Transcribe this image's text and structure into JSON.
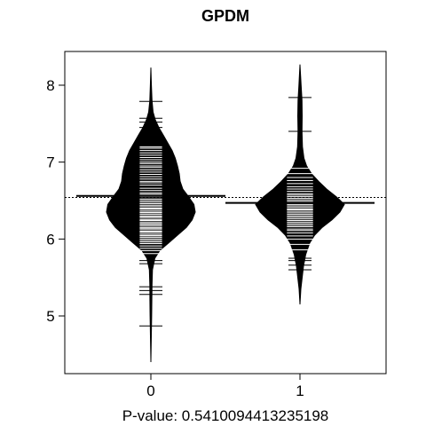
{
  "chart_data": {
    "type": "beanplot",
    "title": "GPDM",
    "xlabel": "P-value: 0.5410094413235198",
    "ylabel": "",
    "categories": [
      "0",
      "1"
    ],
    "ylim": [
      4.3,
      8.4
    ],
    "yticks": [
      5,
      6,
      7,
      8
    ],
    "ytick_labels": [
      "5",
      "6",
      "7",
      "8"
    ],
    "overall_mean": 6.54,
    "grid": false,
    "legend": "none",
    "colors": {
      "bean_fill": "#000000",
      "beanline": "#ffffff",
      "axis": "#000000"
    },
    "series": [
      {
        "category": "0",
        "mean": 6.56,
        "y_range": [
          4.4,
          8.23
        ],
        "density_profile": [
          [
            4.4,
            0.0
          ],
          [
            4.6,
            0.006
          ],
          [
            4.8,
            0.012
          ],
          [
            5.0,
            0.018
          ],
          [
            5.2,
            0.022
          ],
          [
            5.4,
            0.025
          ],
          [
            5.6,
            0.035
          ],
          [
            5.75,
            0.09
          ],
          [
            5.85,
            0.2
          ],
          [
            5.95,
            0.4
          ],
          [
            6.05,
            0.6
          ],
          [
            6.15,
            0.8
          ],
          [
            6.25,
            0.93
          ],
          [
            6.35,
            1.0
          ],
          [
            6.45,
            0.97
          ],
          [
            6.55,
            0.85
          ],
          [
            6.65,
            0.72
          ],
          [
            6.75,
            0.66
          ],
          [
            6.85,
            0.64
          ],
          [
            6.95,
            0.6
          ],
          [
            7.05,
            0.55
          ],
          [
            7.15,
            0.48
          ],
          [
            7.25,
            0.38
          ],
          [
            7.35,
            0.28
          ],
          [
            7.45,
            0.18
          ],
          [
            7.55,
            0.1
          ],
          [
            7.65,
            0.05
          ],
          [
            7.8,
            0.025
          ],
          [
            8.0,
            0.012
          ],
          [
            8.23,
            0.0
          ]
        ],
        "points": [
          4.87,
          5.28,
          5.33,
          5.38,
          5.68,
          5.72,
          5.81,
          5.85,
          5.88,
          5.91,
          5.94,
          5.96,
          5.98,
          6.0,
          6.02,
          6.04,
          6.05,
          6.07,
          6.09,
          6.1,
          6.12,
          6.14,
          6.15,
          6.17,
          6.19,
          6.2,
          6.22,
          6.24,
          6.25,
          6.27,
          6.29,
          6.3,
          6.32,
          6.34,
          6.35,
          6.37,
          6.39,
          6.4,
          6.42,
          6.44,
          6.46,
          6.48,
          6.5,
          6.52,
          6.55,
          6.58,
          6.6,
          6.63,
          6.66,
          6.7,
          6.73,
          6.75,
          6.78,
          6.81,
          6.84,
          6.87,
          6.9,
          6.93,
          6.95,
          6.98,
          7.0,
          7.03,
          7.06,
          7.09,
          7.12,
          7.15,
          7.18,
          7.2,
          7.3,
          7.35,
          7.45,
          7.52,
          7.57,
          7.79
        ]
      },
      {
        "category": "1",
        "mean": 6.47,
        "y_range": [
          5.15,
          8.27
        ],
        "density_profile": [
          [
            5.15,
            0.0
          ],
          [
            5.35,
            0.02
          ],
          [
            5.5,
            0.05
          ],
          [
            5.65,
            0.08
          ],
          [
            5.8,
            0.13
          ],
          [
            5.95,
            0.22
          ],
          [
            6.05,
            0.33
          ],
          [
            6.15,
            0.5
          ],
          [
            6.25,
            0.72
          ],
          [
            6.35,
            0.9
          ],
          [
            6.45,
            1.0
          ],
          [
            6.55,
            0.82
          ],
          [
            6.65,
            0.6
          ],
          [
            6.75,
            0.42
          ],
          [
            6.85,
            0.26
          ],
          [
            6.95,
            0.15
          ],
          [
            7.05,
            0.09
          ],
          [
            7.2,
            0.055
          ],
          [
            7.4,
            0.045
          ],
          [
            7.6,
            0.05
          ],
          [
            7.8,
            0.045
          ],
          [
            8.0,
            0.025
          ],
          [
            8.27,
            0.0
          ]
        ],
        "points": [
          5.6,
          5.66,
          5.72,
          5.75,
          5.86,
          5.93,
          6.0,
          6.04,
          6.08,
          6.11,
          6.13,
          6.16,
          6.18,
          6.2,
          6.22,
          6.24,
          6.26,
          6.28,
          6.3,
          6.32,
          6.34,
          6.36,
          6.38,
          6.39,
          6.41,
          6.43,
          6.45,
          6.47,
          6.49,
          6.51,
          6.53,
          6.55,
          6.57,
          6.59,
          6.62,
          6.65,
          6.68,
          6.72,
          6.76,
          6.8,
          6.85,
          6.92,
          7.4,
          7.84
        ]
      }
    ]
  }
}
